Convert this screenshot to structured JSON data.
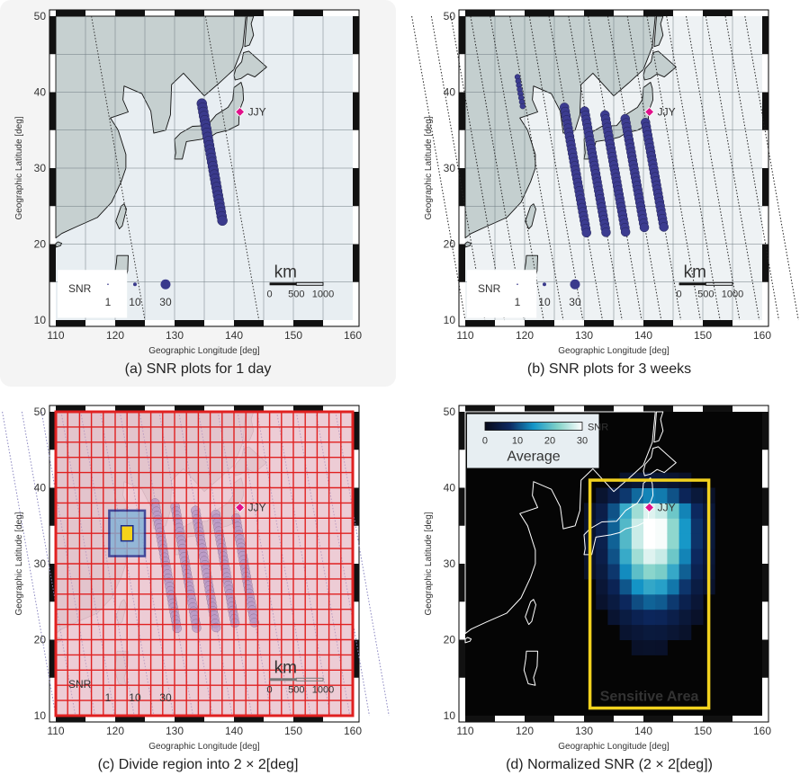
{
  "axes": {
    "xlabel": "Geographic Longitude [deg]",
    "ylabel": "Geographic Latitude [deg]",
    "xticks": [
      110,
      120,
      130,
      140,
      150,
      160
    ],
    "yticks": [
      10,
      20,
      30,
      40,
      50
    ]
  },
  "station": {
    "label": "JJY",
    "lon": 141,
    "lat": 37.4,
    "color": "#e0108a"
  },
  "snr_legend": {
    "title": "SNR",
    "values": [
      "1",
      "10",
      "30"
    ]
  },
  "scale_bar": {
    "unit": "km",
    "ticks": [
      "0",
      "500",
      "1000"
    ]
  },
  "colorbar": {
    "unit": "SNR",
    "ticks": [
      "0",
      "10",
      "20",
      "30"
    ],
    "label": "Average"
  },
  "sensitive_area": {
    "label": "Sensitive Area",
    "lon": [
      131,
      151
    ],
    "lat": [
      11,
      41
    ],
    "color": "#f2d21e"
  },
  "grid_box": {
    "outer_lon": [
      119,
      125
    ],
    "outer_lat": [
      31,
      37
    ],
    "inner_lon": [
      121,
      123
    ],
    "inner_lat": [
      33,
      35
    ]
  },
  "panels": [
    {
      "id": "a",
      "caption": "(a) SNR plots for 1 day"
    },
    {
      "id": "b",
      "caption": "(b) SNR plots for 3 weeks"
    },
    {
      "id": "c",
      "caption": "(c) Divide region into 2 × 2[deg]"
    },
    {
      "id": "d",
      "caption": "(d) Normalized SNR (2 × 2[deg])"
    }
  ]
}
